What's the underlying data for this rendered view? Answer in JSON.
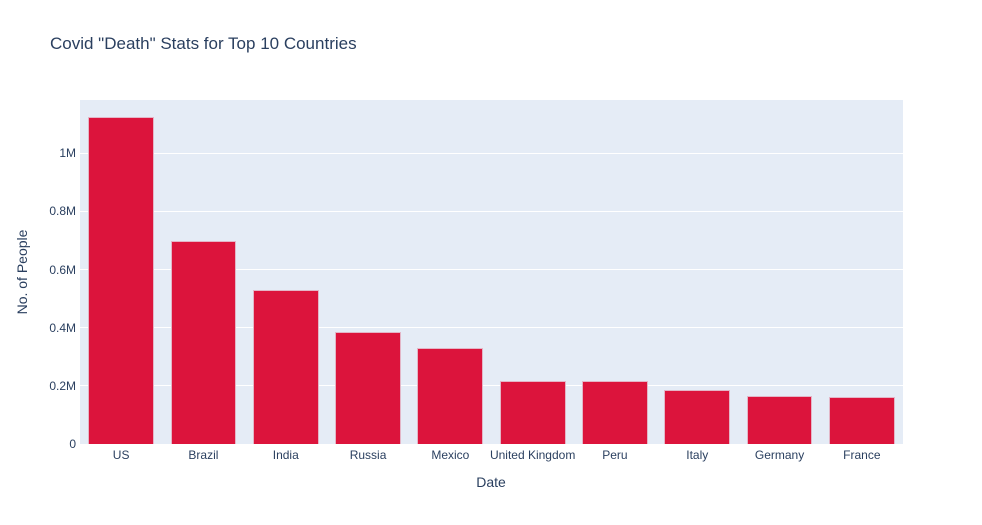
{
  "chart_data": {
    "type": "bar",
    "title": "Covid \"Death\" Stats for Top 10 Countries",
    "xlabel": "Date",
    "ylabel": "No. of People",
    "categories": [
      "US",
      "Brazil",
      "India",
      "Russia",
      "Mexico",
      "United Kingdom",
      "Peru",
      "Italy",
      "Germany",
      "France"
    ],
    "values": [
      1124000,
      698000,
      529000,
      385000,
      330000,
      218000,
      216000,
      185000,
      166000,
      163000
    ],
    "ylim": [
      0,
      1183000
    ],
    "yticks": [
      0,
      200000,
      400000,
      600000,
      800000,
      1000000
    ],
    "ytick_labels": [
      "0",
      "0.2M",
      "0.4M",
      "0.6M",
      "0.8M",
      "1M"
    ],
    "grid": true,
    "legend": "none",
    "bar_color": "#DC143C",
    "plot_bg": "#E5ECF6"
  }
}
